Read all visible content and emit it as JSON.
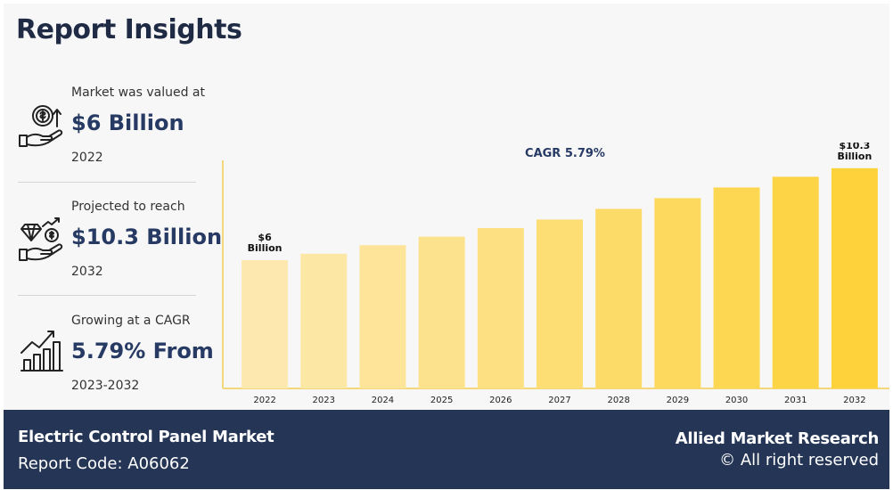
{
  "header": {
    "title": "Report Insights"
  },
  "stats": [
    {
      "caption": "Market was valued at",
      "value": "$6 Billion",
      "year": "2022",
      "icon": "hand-money-icon"
    },
    {
      "caption": "Projected to reach",
      "value": "$10.3 Billion",
      "year": "2032",
      "icon": "hand-diamond-icon"
    },
    {
      "caption": "Growing at a CAGR",
      "value": "5.79% From",
      "year": "2023-2032",
      "icon": "growth-chart-icon"
    }
  ],
  "chart_data": {
    "type": "bar",
    "title": "CAGR 5.79%",
    "categories": [
      "2022",
      "2023",
      "2024",
      "2025",
      "2026",
      "2027",
      "2028",
      "2029",
      "2030",
      "2031",
      "2032"
    ],
    "values": [
      6.0,
      6.3,
      6.7,
      7.1,
      7.5,
      7.9,
      8.4,
      8.9,
      9.4,
      9.9,
      10.3
    ],
    "annotations": [
      {
        "category": "2022",
        "lines": [
          "$6",
          "Billion"
        ]
      },
      {
        "category": "2032",
        "lines": [
          "$10.3",
          "Billion"
        ]
      }
    ],
    "colors": {
      "start": "#fde9b0",
      "end": "#fdd23a",
      "axis": "#f4d77a"
    }
  },
  "footer": {
    "market_name": "Electric Control Panel Market",
    "report_code": "Report Code: A06062",
    "publisher": "Allied Market Research",
    "rights": "© All right reserved"
  }
}
